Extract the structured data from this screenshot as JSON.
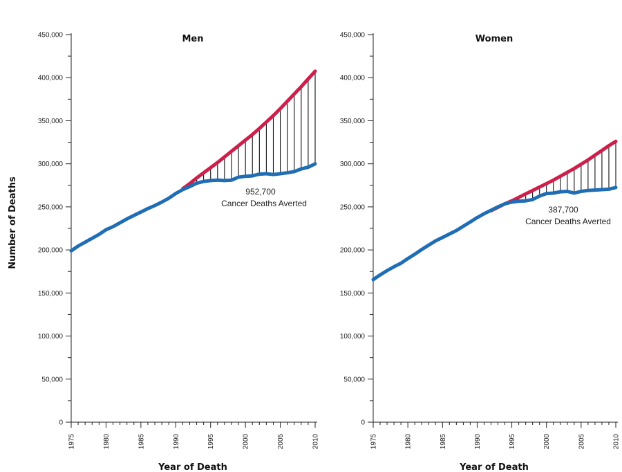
{
  "figure": {
    "ylabel": "Number of Deaths",
    "colors": {
      "observed": "#1f6db5",
      "expected": "#cc1f4a",
      "averted_lines": "#111111",
      "axis": "#222222"
    }
  },
  "chart_data": [
    {
      "type": "line",
      "title": "Men",
      "xlabel": "Year of Death",
      "ylabel": "Number of Deaths",
      "xlim": [
        1975,
        2010
      ],
      "ylim": [
        0,
        450000
      ],
      "x_ticks": [
        "1975",
        "1980",
        "1985",
        "1990",
        "1995",
        "2000",
        "2005",
        "2010"
      ],
      "y_ticks": [
        "0",
        "50,000",
        "100,000",
        "150,000",
        "200,000",
        "250,000",
        "300,000",
        "350,000",
        "400,000",
        "450,000"
      ],
      "grid": false,
      "annotation": {
        "value": "952,700",
        "text": "Cancer Deaths Averted"
      },
      "series": [
        {
          "role": "observed",
          "x": [
            1975,
            1976,
            1977,
            1978,
            1979,
            1980,
            1981,
            1982,
            1983,
            1984,
            1985,
            1986,
            1987,
            1988,
            1989,
            1990,
            1991,
            1992,
            1993,
            1994,
            1995,
            1996,
            1997,
            1998,
            1999,
            2000,
            2001,
            2002,
            2003,
            2004,
            2005,
            2006,
            2007,
            2008,
            2009,
            2010
          ],
          "values": [
            199000,
            204500,
            209000,
            213500,
            218000,
            223500,
            227000,
            231500,
            236000,
            240000,
            244000,
            248000,
            251500,
            255500,
            260000,
            265500,
            270000,
            273500,
            277500,
            279500,
            280500,
            281000,
            280500,
            281000,
            284500,
            285500,
            286000,
            288000,
            288500,
            287500,
            288500,
            289500,
            291000,
            294000,
            296000,
            300000
          ]
        },
        {
          "role": "expected",
          "x": [
            1991,
            1992,
            1993,
            1994,
            1995,
            1996,
            1997,
            1998,
            1999,
            2000,
            2001,
            2002,
            2003,
            2004,
            2005,
            2006,
            2007,
            2008,
            2009,
            2010
          ],
          "values": [
            271000,
            277000,
            283500,
            289500,
            295500,
            301500,
            308000,
            314500,
            321000,
            327500,
            334000,
            341000,
            348500,
            356000,
            364000,
            372500,
            381000,
            389500,
            398500,
            407500
          ]
        }
      ]
    },
    {
      "type": "line",
      "title": "Women",
      "xlabel": "Year of Death",
      "ylabel": "",
      "xlim": [
        1975,
        2010
      ],
      "ylim": [
        0,
        450000
      ],
      "x_ticks": [
        "1975",
        "1980",
        "1985",
        "1990",
        "1995",
        "2000",
        "2005",
        "2010"
      ],
      "y_ticks": [
        "0",
        "50,000",
        "100,000",
        "150,000",
        "200,000",
        "250,000",
        "300,000",
        "350,000",
        "400,000",
        "450,000"
      ],
      "grid": false,
      "annotation": {
        "value": "387,700",
        "text": "Cancer Deaths Averted"
      },
      "series": [
        {
          "role": "observed",
          "x": [
            1975,
            1976,
            1977,
            1978,
            1979,
            1980,
            1981,
            1982,
            1983,
            1984,
            1985,
            1986,
            1987,
            1988,
            1989,
            1990,
            1991,
            1992,
            1993,
            1994,
            1995,
            1996,
            1997,
            1998,
            1999,
            2000,
            2001,
            2002,
            2003,
            2004,
            2005,
            2006,
            2007,
            2008,
            2009,
            2010
          ],
          "values": [
            165500,
            171000,
            176000,
            180500,
            184500,
            190000,
            195000,
            200500,
            205500,
            210500,
            214500,
            218500,
            222500,
            227500,
            232500,
            237500,
            242000,
            246000,
            250000,
            253500,
            255500,
            256500,
            257000,
            258500,
            262500,
            265500,
            266000,
            267500,
            268000,
            266000,
            268000,
            269000,
            269500,
            270000,
            270500,
            272500
          ]
        },
        {
          "role": "expected",
          "x": [
            1992,
            1993,
            1994,
            1995,
            1996,
            1997,
            1998,
            1999,
            2000,
            2001,
            2002,
            2003,
            2004,
            2005,
            2006,
            2007,
            2008,
            2009,
            2010
          ],
          "values": [
            245500,
            249500,
            253500,
            257000,
            261000,
            265000,
            269000,
            273000,
            277000,
            281000,
            285500,
            290000,
            294500,
            299500,
            304500,
            310000,
            315500,
            321000,
            326000
          ]
        }
      ]
    }
  ]
}
